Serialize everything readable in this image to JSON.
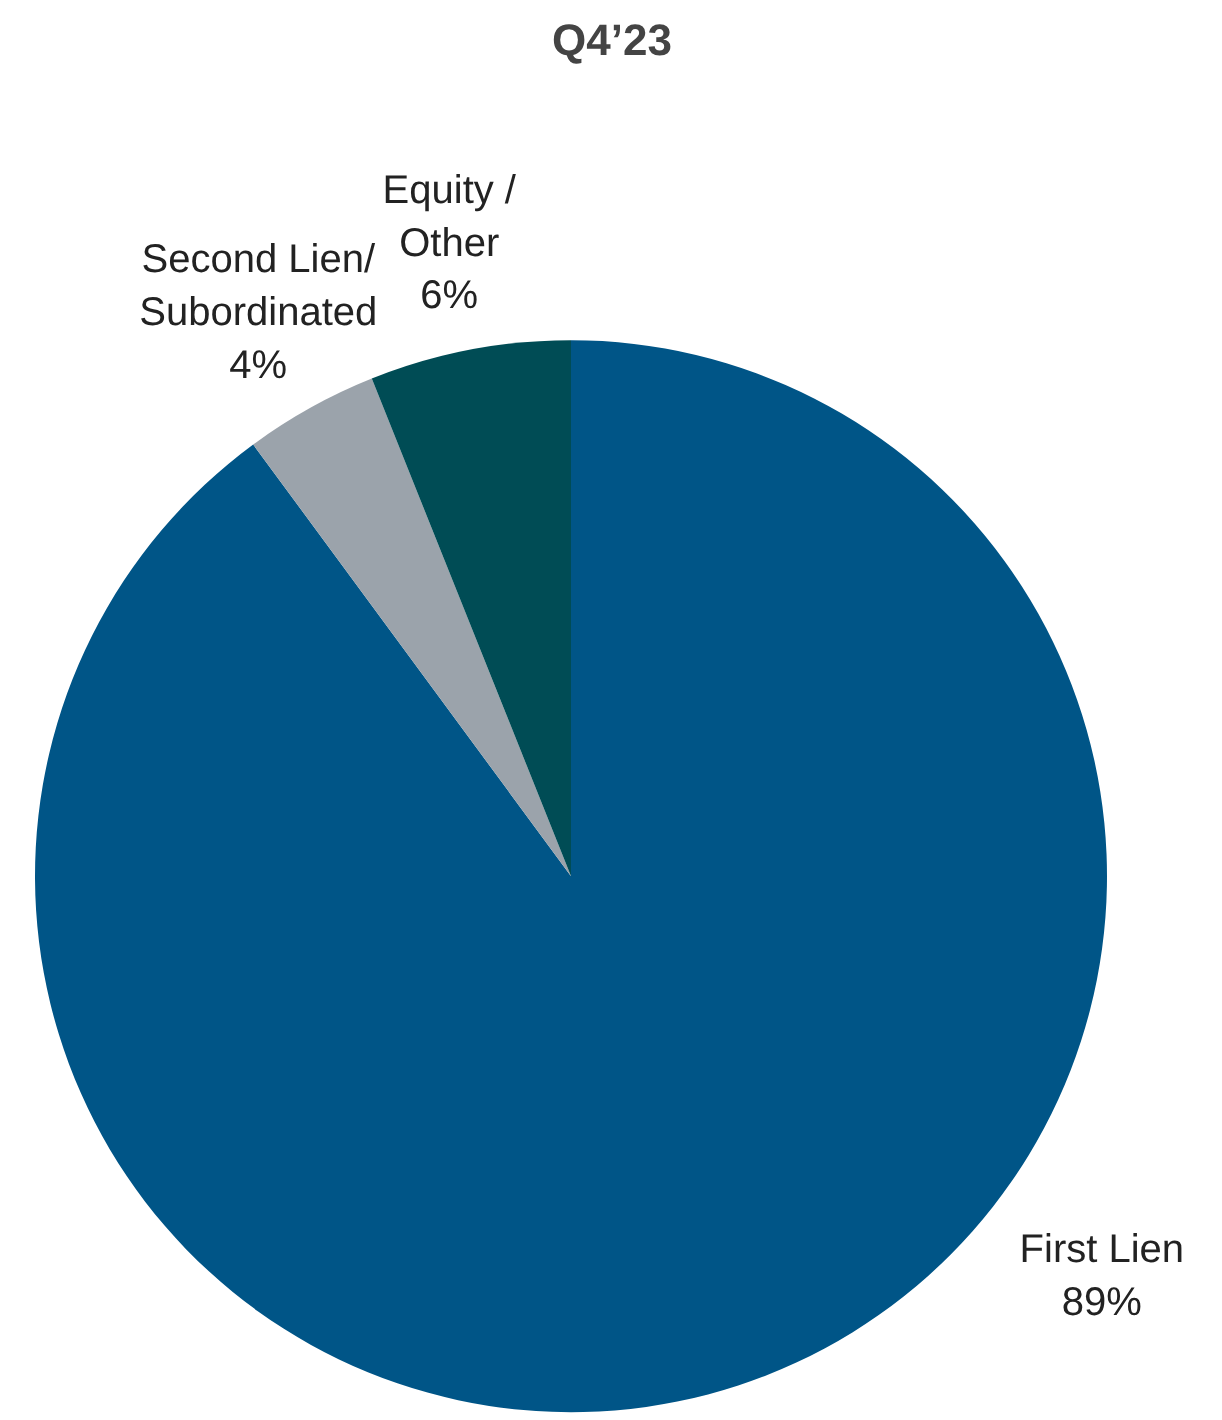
{
  "chart_data": {
    "type": "pie",
    "title": "Q4’23",
    "categories": [
      "First Lien",
      "Second Lien/\nSubordinated",
      "Equity /\nOther"
    ],
    "values": [
      89,
      4,
      6
    ],
    "value_labels": [
      "89%",
      "4%",
      "6%"
    ],
    "colors": [
      "#005587",
      "#9ba3ab",
      "#004c55"
    ]
  }
}
